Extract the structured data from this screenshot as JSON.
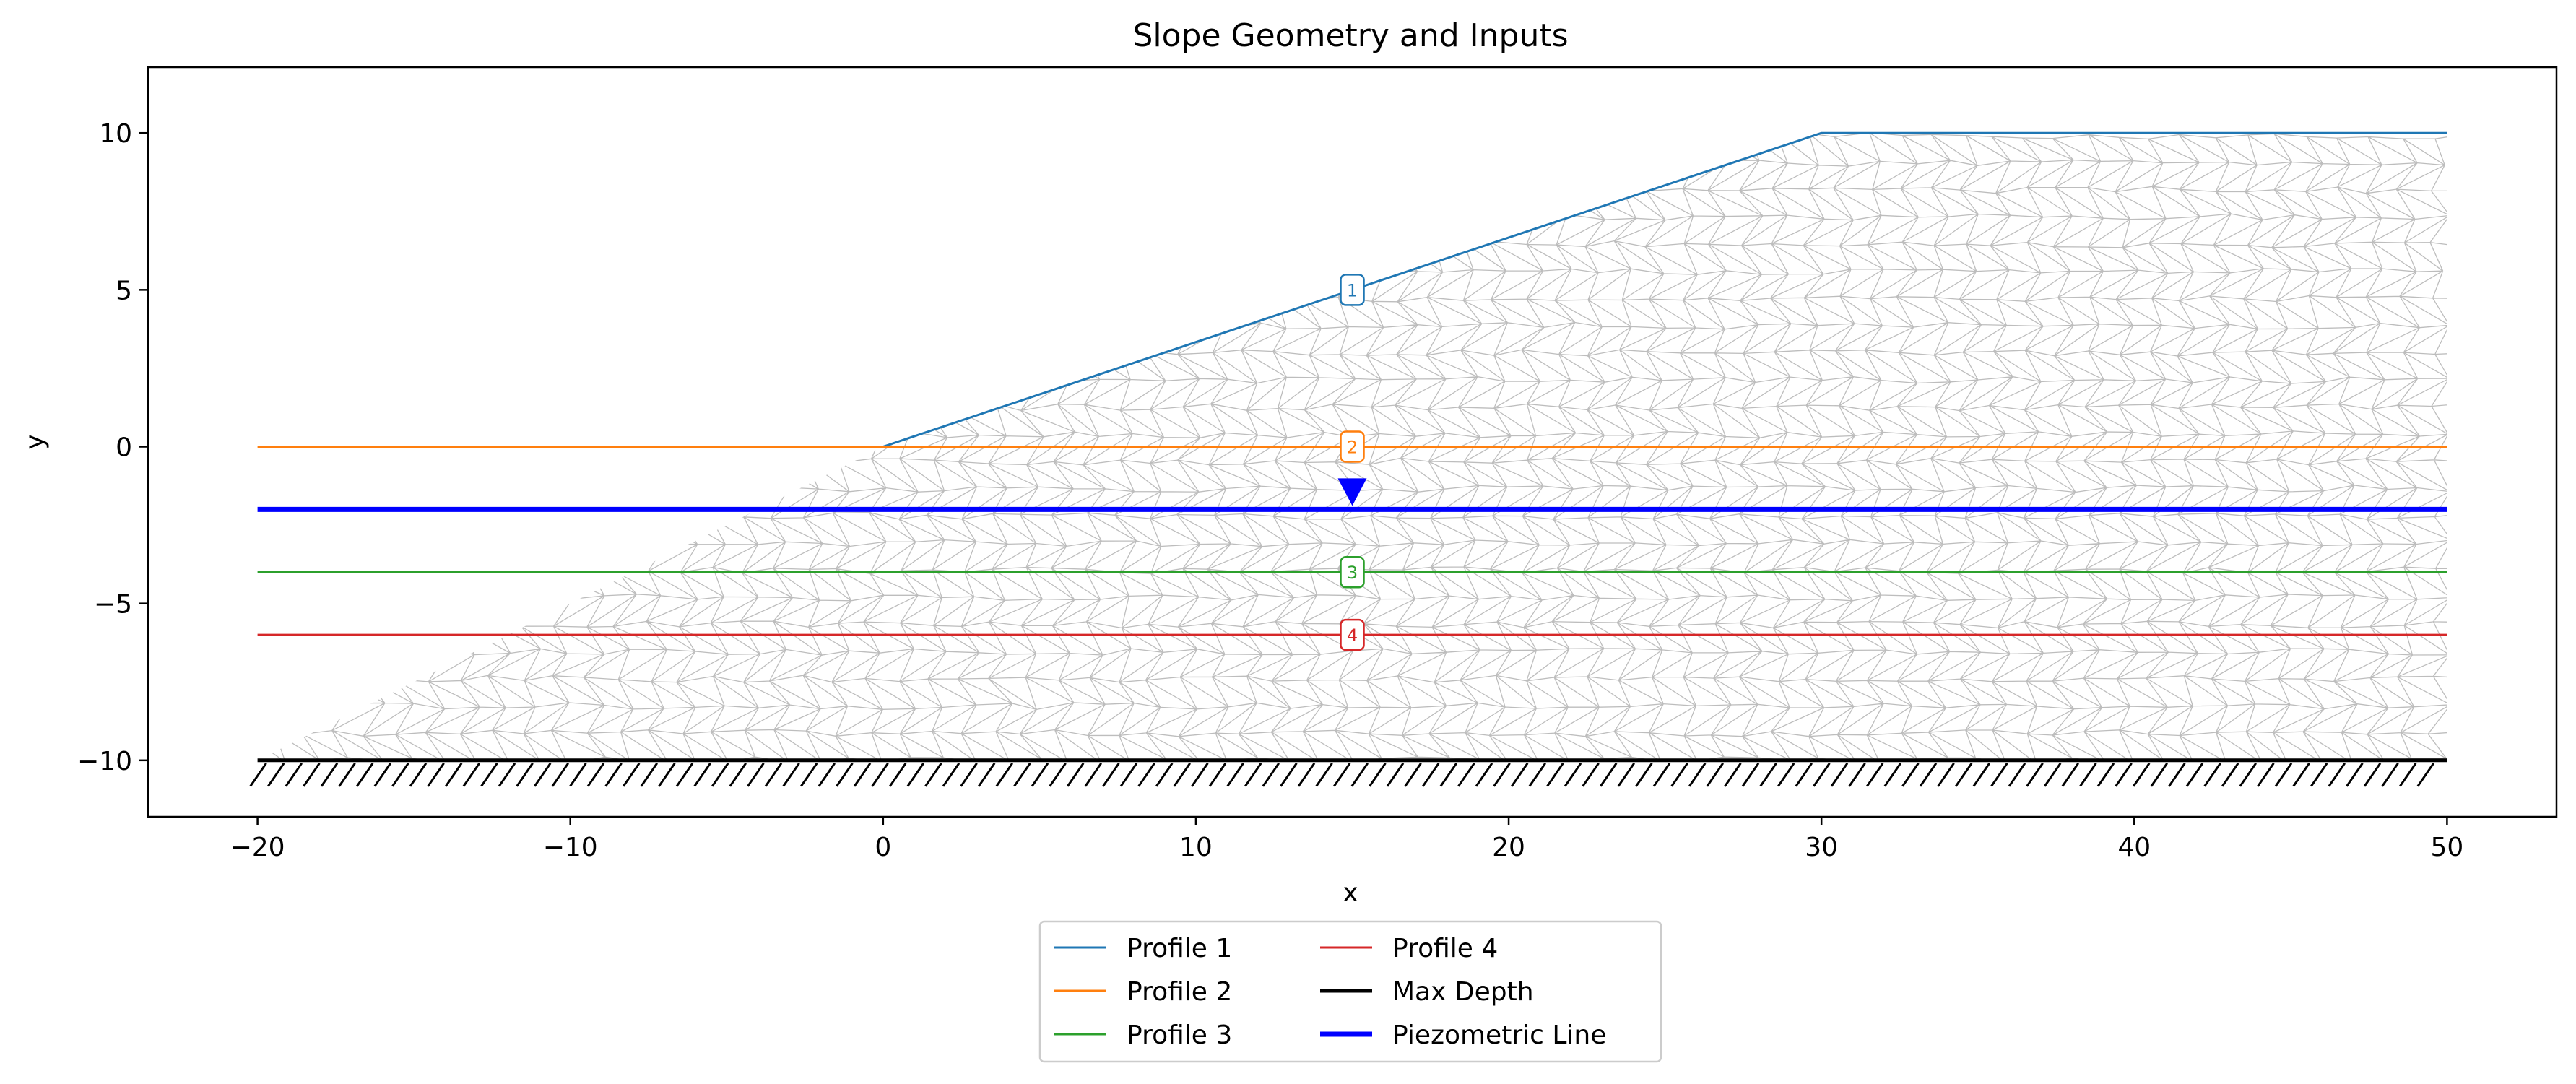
{
  "chart_data": {
    "type": "line",
    "title": "Slope Geometry and Inputs",
    "xlabel": "x",
    "ylabel": "y",
    "xlim": [
      -23.5,
      53.5
    ],
    "ylim": [
      -11.8,
      12.1
    ],
    "x_ticks": [
      -20,
      -10,
      0,
      10,
      20,
      30,
      40,
      50
    ],
    "y_ticks": [
      -10,
      -5,
      0,
      5,
      10
    ],
    "grid": false,
    "legend_position": "bottom-center",
    "series": [
      {
        "name": "Profile 1",
        "color": "#1f77b4",
        "x": [
          0,
          30,
          50
        ],
        "y": [
          0,
          10,
          10
        ],
        "marker_label": "1",
        "marker_x": 15,
        "marker_y": 5
      },
      {
        "name": "Profile 2",
        "color": "#ff7f0e",
        "x": [
          -20,
          50
        ],
        "y": [
          0,
          0
        ],
        "marker_label": "2",
        "marker_x": 15,
        "marker_y": 0
      },
      {
        "name": "Profile 3",
        "color": "#2ca02c",
        "x": [
          -20,
          50
        ],
        "y": [
          -4,
          -4
        ],
        "marker_label": "3",
        "marker_x": 15,
        "marker_y": -4
      },
      {
        "name": "Profile 4",
        "color": "#d62728",
        "x": [
          -20,
          50
        ],
        "y": [
          -6,
          -6
        ],
        "marker_label": "4",
        "marker_x": 15,
        "marker_y": -6
      },
      {
        "name": "Max Depth",
        "color": "#000000",
        "x": [
          -20,
          50
        ],
        "y": [
          -10,
          -10
        ]
      },
      {
        "name": "Piezometric Line",
        "color": "#0000ff",
        "x": [
          -20,
          50
        ],
        "y": [
          -2,
          -2
        ],
        "water_marker_x": 15
      }
    ],
    "mesh_region": {
      "x": [
        -20,
        0,
        30,
        50,
        50,
        -20
      ],
      "y": [
        -10,
        0,
        10,
        10,
        -10,
        -10
      ],
      "color": "#bdbdbd"
    }
  }
}
